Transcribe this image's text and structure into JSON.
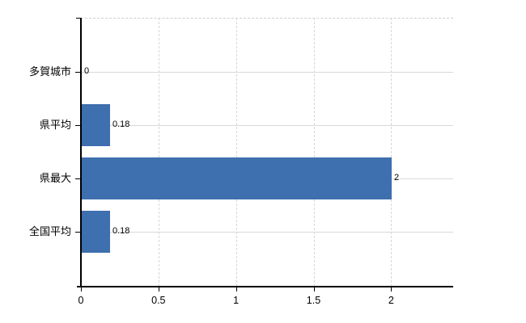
{
  "chart_data": {
    "type": "bar",
    "orientation": "horizontal",
    "title": "",
    "xlabel": "",
    "ylabel": "",
    "categories": [
      "多賀城市",
      "県平均",
      "県最大",
      "全国平均"
    ],
    "values": [
      0,
      0.18,
      2,
      0.18
    ],
    "value_labels": [
      "0",
      "0.18",
      "2",
      "0.18"
    ],
    "xlim": [
      0,
      2.4
    ],
    "xticks": [
      0,
      0.5,
      1,
      1.5,
      2
    ],
    "xtick_labels": [
      "0",
      "0.5",
      "1",
      "1.5",
      "2"
    ],
    "grid": true,
    "legend": false,
    "colors": {
      "bar": "#3e6fae",
      "axis": "#000000",
      "gridline": "#d9d9d9",
      "text": "#000000",
      "background": "#ffffff"
    }
  }
}
